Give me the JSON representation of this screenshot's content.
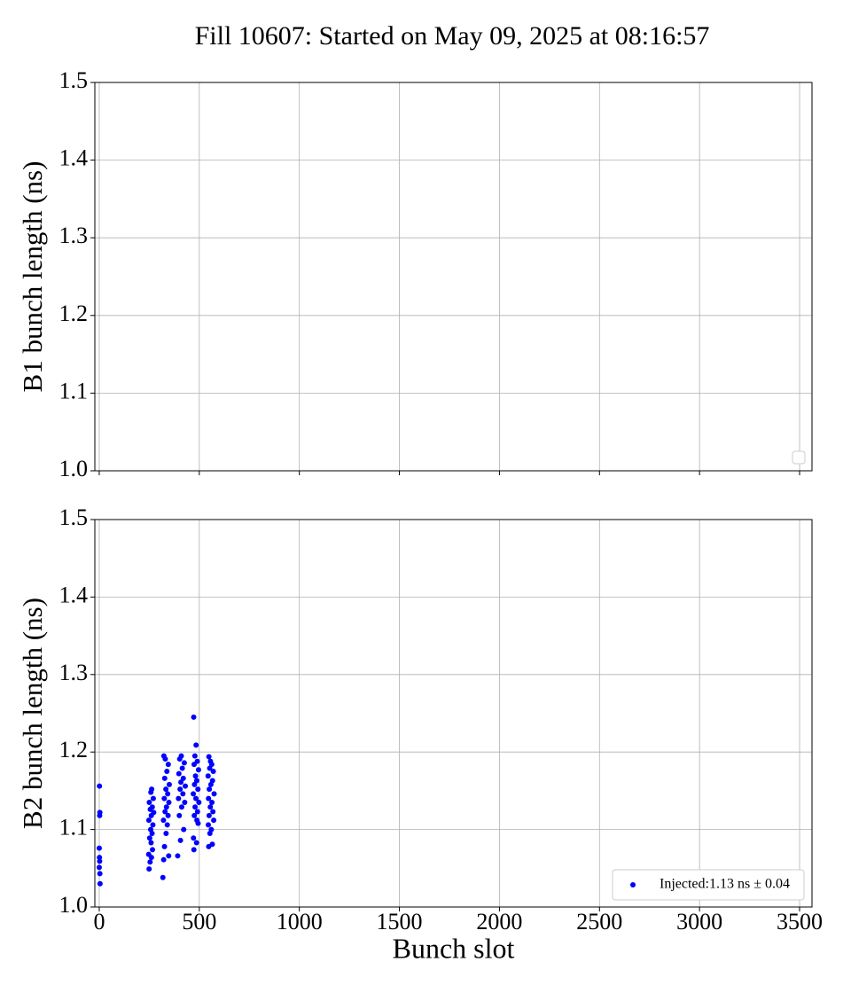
{
  "chart_data": [
    {
      "type": "scatter",
      "title": "Fill 10607: Started on May 09, 2025 at 08:16:57",
      "ylabel": "B1 bunch length (ns)",
      "sharex": true,
      "ylim": [
        1.0,
        1.5
      ],
      "yticks": [
        {
          "value": 1.0,
          "label": "1.0"
        },
        1.1,
        1.2,
        1.3,
        1.4,
        {
          "value": 1.5,
          "label": "1.5"
        }
      ],
      "grid": true,
      "legend": "lower right",
      "series": []
    },
    {
      "type": "scatter",
      "xlabel": "Bunch slot",
      "ylabel": "B2 bunch length (ns)",
      "xlim": [
        -22,
        3562
      ],
      "xticks": [
        0,
        500,
        1000,
        1500,
        2000,
        2500,
        3000,
        3500
      ],
      "ylim": [
        1.0,
        1.5
      ],
      "yticks": [
        {
          "value": 1.0,
          "label": "1.0"
        },
        1.1,
        1.2,
        1.3,
        1.4,
        {
          "value": 1.5,
          "label": "1.5"
        }
      ],
      "grid": true,
      "legend": "lower right",
      "series": [
        {
          "name": "Injected:1.13 ns ± 0.04",
          "color": "#0000ff",
          "x": [
            1,
            3,
            2,
            0,
            1,
            2,
            0,
            3,
            4,
            262,
            258,
            270,
            250,
            265,
            255,
            272,
            260,
            248,
            268,
            257,
            264,
            252,
            259,
            266,
            247,
            261,
            254,
            249,
            323,
            330,
            345,
            338,
            327,
            350,
            333,
            342,
            325,
            348,
            336,
            329,
            344,
            321,
            340,
            334,
            326,
            347,
            322,
            318,
            410,
            402,
            425,
            415,
            398,
            420,
            408,
            430,
            404,
            418,
            396,
            427,
            412,
            400,
            422,
            406,
            392,
            472,
            484,
            478,
            490,
            474,
            496,
            481,
            487,
            476,
            493,
            470,
            483,
            498,
            479,
            491,
            475,
            488,
            494,
            471,
            486,
            473,
            548,
            556,
            562,
            552,
            570,
            544,
            566,
            558,
            550,
            574,
            546,
            563,
            555,
            568,
            549,
            572,
            545,
            560,
            553,
            565,
            547
          ],
          "values": [
            1.156,
            1.122,
            1.118,
            1.076,
            1.064,
            1.059,
            1.051,
            1.043,
            1.03,
            1.152,
            1.148,
            1.14,
            1.135,
            1.129,
            1.126,
            1.122,
            1.118,
            1.112,
            1.106,
            1.1,
            1.095,
            1.089,
            1.083,
            1.074,
            1.068,
            1.064,
            1.058,
            1.049,
            1.195,
            1.191,
            1.184,
            1.175,
            1.166,
            1.158,
            1.152,
            1.146,
            1.14,
            1.135,
            1.129,
            1.123,
            1.118,
            1.112,
            1.106,
            1.095,
            1.078,
            1.066,
            1.061,
            1.038,
            1.195,
            1.191,
            1.186,
            1.179,
            1.172,
            1.166,
            1.161,
            1.156,
            1.152,
            1.146,
            1.14,
            1.135,
            1.129,
            1.118,
            1.1,
            1.086,
            1.066,
            1.245,
            1.209,
            1.195,
            1.188,
            1.184,
            1.177,
            1.169,
            1.163,
            1.158,
            1.152,
            1.146,
            1.14,
            1.135,
            1.129,
            1.123,
            1.118,
            1.112,
            1.108,
            1.089,
            1.083,
            1.074,
            1.194,
            1.188,
            1.184,
            1.179,
            1.175,
            1.169,
            1.163,
            1.158,
            1.152,
            1.146,
            1.14,
            1.135,
            1.129,
            1.123,
            1.118,
            1.112,
            1.106,
            1.1,
            1.095,
            1.081,
            1.078
          ]
        }
      ]
    }
  ]
}
